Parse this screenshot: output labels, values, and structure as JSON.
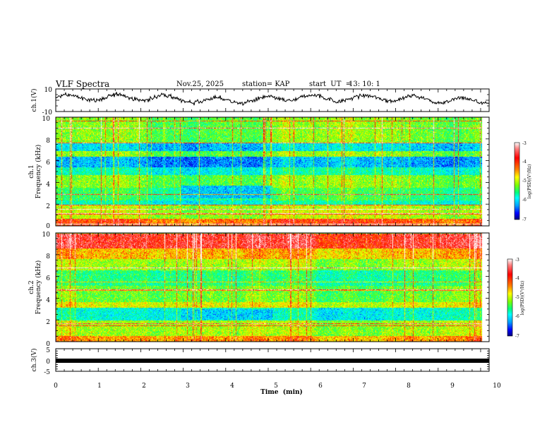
{
  "header": {
    "title": "VLF Spectra",
    "date": "Nov.25, 2025",
    "station": "station= KAP",
    "start_label": "start  UT  =",
    "start_time": "13: 10: 1"
  },
  "colorbar": {
    "label": "log(PSD)(V²/Hz)",
    "ticks": [
      "-3",
      "-4",
      "-5",
      "-6",
      "-7"
    ]
  },
  "chart_data": [
    {
      "type": "line",
      "name": "ch1-waveform",
      "ylabel": "ch.1(V)",
      "ylim": [
        -10,
        10
      ],
      "yticks": [
        "10",
        "-10"
      ],
      "xlim": [
        0,
        10.2
      ],
      "description": "noisy waveform oscillating mostly between -3 and 7 V"
    },
    {
      "type": "heatmap",
      "name": "ch1-spectrogram",
      "ylabel_line1": "ch.1",
      "ylabel_line2": "Frequency (kHz)",
      "ylim": [
        0,
        10
      ],
      "yticks": [
        "0",
        "2",
        "4",
        "6",
        "8",
        "10"
      ],
      "xlim": [
        0,
        10
      ],
      "zlim": [
        -7,
        -3
      ],
      "colorscale": [
        "#000080",
        "#0000ff",
        "#00a0ff",
        "#00ffff",
        "#00ff80",
        "#80ff00",
        "#ffff00",
        "#ff8000",
        "#ff0000",
        "#ff8080",
        "#ffffff"
      ],
      "bands_khz": [
        {
          "f0": 0,
          "f1": 0.6,
          "level": -4.0
        },
        {
          "f0": 0.6,
          "f1": 1.9,
          "level": -4.8
        },
        {
          "f0": 1.9,
          "f1": 2.3,
          "level": -5.6
        },
        {
          "f0": 2.3,
          "f1": 3.5,
          "level": -5.3
        },
        {
          "f0": 3.5,
          "f1": 4.7,
          "level": -5.0
        },
        {
          "f0": 4.7,
          "f1": 5.4,
          "level": -5.6
        },
        {
          "f0": 5.4,
          "f1": 6.4,
          "level": -6.1
        },
        {
          "f0": 6.4,
          "f1": 6.9,
          "level": -5.0
        },
        {
          "f0": 6.9,
          "f1": 7.6,
          "level": -5.9
        },
        {
          "f0": 7.6,
          "f1": 10,
          "level": -5.0
        }
      ],
      "dark_patch": {
        "t0": 2.9,
        "t1": 5.0,
        "f0": 2.5,
        "f1": 3.7,
        "level": -6.0
      }
    },
    {
      "type": "heatmap",
      "name": "ch2-spectrogram",
      "ylabel_line1": "ch.2",
      "ylabel_line2": "Frequency (kHz)",
      "ylim": [
        0,
        10
      ],
      "yticks": [
        "0",
        "2",
        "4",
        "6",
        "8",
        "10"
      ],
      "xlim": [
        0,
        10
      ],
      "zlim": [
        -7,
        -3
      ],
      "bands_khz": [
        {
          "f0": 0,
          "f1": 0.5,
          "level": -4.2
        },
        {
          "f0": 0.5,
          "f1": 1.9,
          "level": -4.8
        },
        {
          "f0": 1.9,
          "f1": 3.1,
          "level": -5.6
        },
        {
          "f0": 3.1,
          "f1": 3.6,
          "level": -4.6
        },
        {
          "f0": 3.6,
          "f1": 5.1,
          "level": -5.0
        },
        {
          "f0": 5.1,
          "f1": 6.6,
          "level": -5.3
        },
        {
          "f0": 6.6,
          "f1": 7.6,
          "level": -4.8
        },
        {
          "f0": 7.6,
          "f1": 8.6,
          "level": -4.3
        },
        {
          "f0": 8.6,
          "f1": 10,
          "level": -3.6
        }
      ],
      "dark_patch": {
        "t0": 2.9,
        "t1": 5.0,
        "f0": 2.0,
        "f1": 3.0,
        "level": -6.0
      }
    },
    {
      "type": "line",
      "name": "ch3-waveform",
      "ylabel": "ch.3(V)",
      "ylim": [
        -5,
        5
      ],
      "yticks": [
        "5",
        "0",
        "-5"
      ],
      "xlim": [
        0,
        10
      ],
      "xticks": [
        "0",
        "1",
        "2",
        "3",
        "4",
        "5",
        "6",
        "7",
        "8",
        "9",
        "10"
      ],
      "xlabel": "Time  (min)",
      "description": "flat thick trace near -1.5 V"
    }
  ]
}
